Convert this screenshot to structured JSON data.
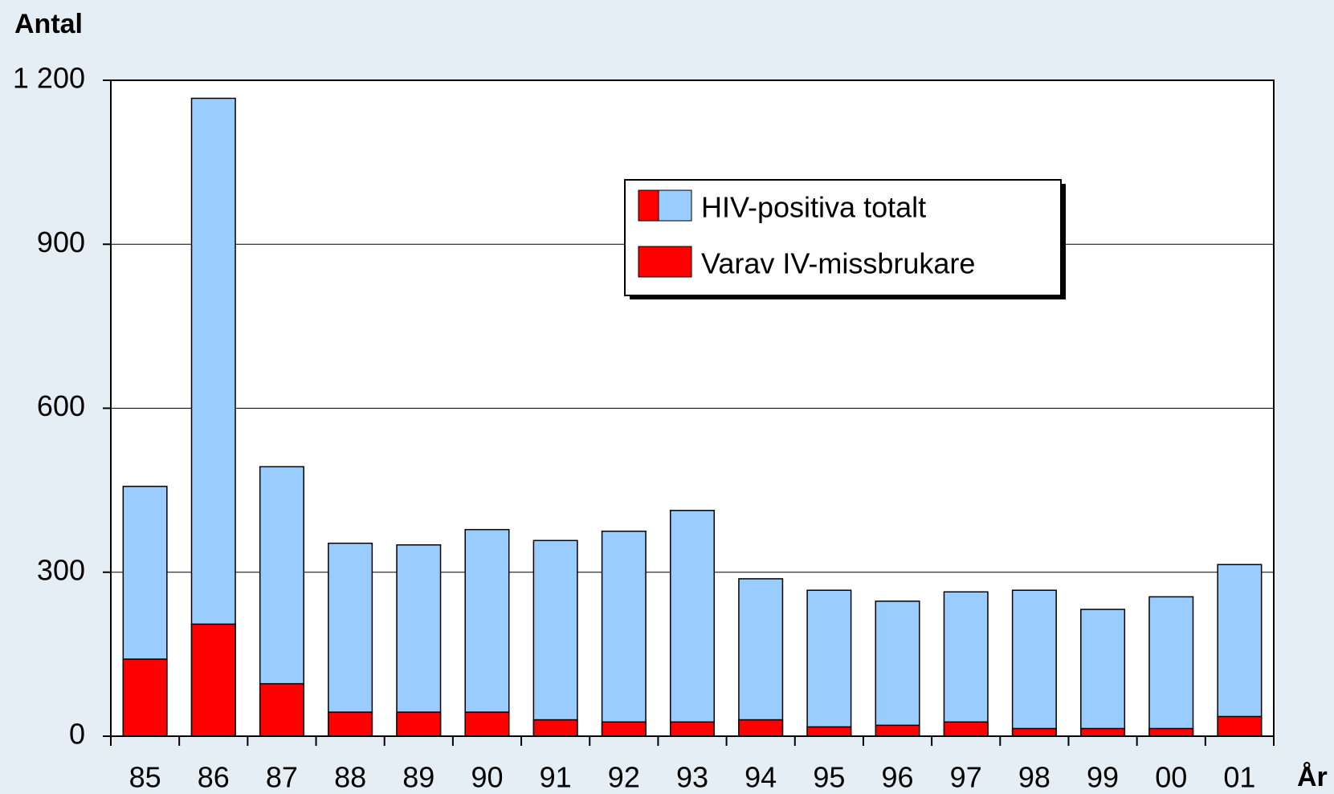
{
  "chart_data": {
    "type": "bar",
    "y_label": "Antal",
    "x_label": "År",
    "categories": [
      "85",
      "86",
      "87",
      "88",
      "89",
      "90",
      "91",
      "92",
      "93",
      "94",
      "95",
      "96",
      "97",
      "98",
      "99",
      "00",
      "01"
    ],
    "series": [
      {
        "name": "HIV-positiva totalt",
        "color": "#99ccff",
        "values": [
          457,
          1167,
          493,
          353,
          350,
          378,
          358,
          375,
          413,
          288,
          267,
          247,
          264,
          267,
          232,
          255,
          314
        ]
      },
      {
        "name": "Varav IV-missbrukare",
        "color": "#ff0000",
        "values": [
          141,
          205,
          96,
          44,
          44,
          44,
          30,
          26,
          26,
          30,
          17,
          20,
          26,
          14,
          14,
          14,
          36
        ]
      }
    ],
    "ylim": [
      0,
      1200
    ],
    "yticks": [
      0,
      300,
      600,
      900,
      {
        "value": 1200,
        "label": "1 200"
      }
    ],
    "grid": true
  }
}
